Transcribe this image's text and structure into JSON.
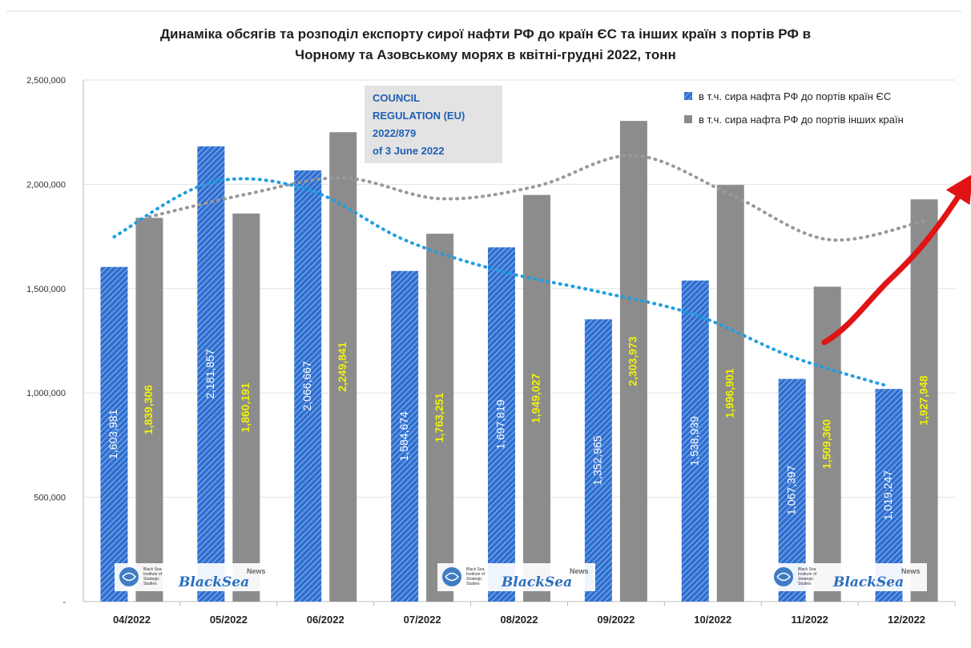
{
  "title_line1": "Динаміка обсягів та розподіл експорту сирої нафти РФ до країн ЄС та інших країн з портів РФ в",
  "title_line2": "Чорному та Азовському морях в квітні-грудні 2022, тонн",
  "regulation": [
    "COUNCIL",
    "REGULATION (EU)",
    "2022/879",
    "of 3 June 2022"
  ],
  "logo": {
    "line1": "Black Sea",
    "line2": "Institute of",
    "line3": "Strategic",
    "line4": "Studies",
    "brand": "BlackSea",
    "news": "News"
  },
  "colors": {
    "eu": "#2f6fd0",
    "other": "#8c8c8c",
    "eu_trend": "#1f9ee0",
    "other_trend": "#999999",
    "arrow": "#e01414",
    "label_eu": "#ffffff",
    "label_other": "#f2f20a"
  },
  "chart_data": {
    "type": "bar",
    "title": "Динаміка обсягів та розподіл експорту сирої нафти РФ до країн ЄС та інших країн з портів РФ в Чорному та Азовському морях в квітні-грудні 2022, тонн",
    "categories": [
      "04/2022",
      "05/2022",
      "06/2022",
      "07/2022",
      "08/2022",
      "09/2022",
      "10/2022",
      "11/2022",
      "12/2022"
    ],
    "series": [
      {
        "name": "в т.ч. сира нафта РФ до портів країн ЄС",
        "values": [
          1603981,
          2181857,
          2066667,
          1584674,
          1697819,
          1352965,
          1538939,
          1067397,
          1019247
        ],
        "labels": [
          "1,603,981",
          "2,181,857",
          "2,066,667",
          "1,584,674",
          "1,697,819",
          "1,352,965",
          "1,538,939",
          "1,067,397",
          "1,019,247"
        ]
      },
      {
        "name": "в т.ч. сира нафта РФ до портів інших країн",
        "values": [
          1839306,
          1860191,
          2249841,
          1763251,
          1949027,
          2303973,
          1996901,
          1509360,
          1927948
        ],
        "labels": [
          "1,839,306",
          "1,860,191",
          "2,249,841",
          "1,763,251",
          "1,949,027",
          "2,303,973",
          "1,996,901",
          "1,509,360",
          "1,927,948"
        ]
      }
    ],
    "ylim": [
      0,
      2500000
    ],
    "y_ticks": [
      0,
      500000,
      1000000,
      1500000,
      2000000,
      2500000
    ],
    "y_tick_labels": [
      "-",
      "500,000",
      "1,000,000",
      "1,500,000",
      "2,000,000",
      "2,500,000"
    ],
    "xlabel": "",
    "ylabel": "",
    "legend_position": "top-right",
    "grid": true
  }
}
